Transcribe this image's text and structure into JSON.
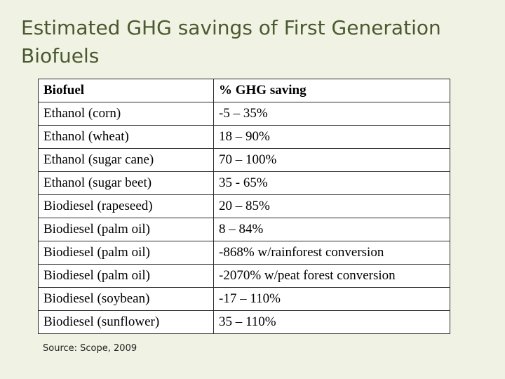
{
  "title": "Estimated GHG savings of First Generation Biofuels",
  "table": {
    "headers": [
      "Biofuel",
      "% GHG saving"
    ],
    "rows": [
      [
        "Ethanol (corn)",
        "-5 – 35%"
      ],
      [
        "Ethanol (wheat)",
        "18 – 90%"
      ],
      [
        "Ethanol (sugar cane)",
        "70 – 100%"
      ],
      [
        "Ethanol (sugar beet)",
        "35 - 65%"
      ],
      [
        "Biodiesel (rapeseed)",
        "20 – 85%"
      ],
      [
        "Biodiesel (palm oil)",
        "8 – 84%"
      ],
      [
        "Biodiesel (palm oil)",
        "-868% w/rainforest conversion"
      ],
      [
        "Biodiesel (palm oil)",
        "-2070% w/peat forest conversion"
      ],
      [
        "Biodiesel (soybean)",
        "-17 – 110%"
      ],
      [
        "Biodiesel (sunflower)",
        "35 – 110%"
      ]
    ]
  },
  "source": "Source: Scope, 2009",
  "colors": {
    "background": "#f0f2e4",
    "title": "#4a5a2e",
    "table_background": "#ffffff",
    "border": "#2b2b2b"
  }
}
